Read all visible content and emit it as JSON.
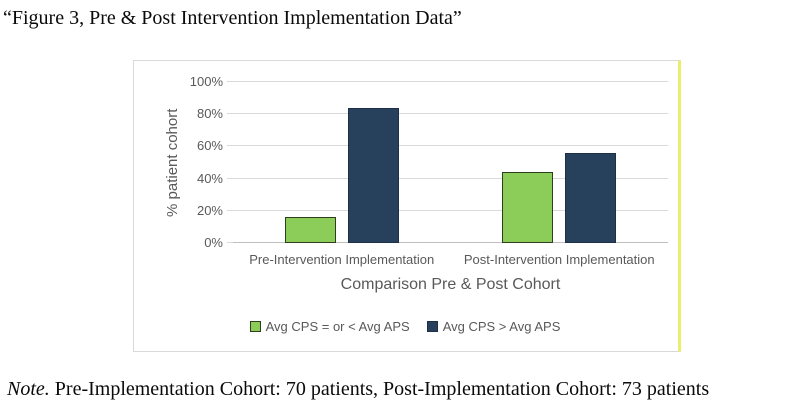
{
  "page": {
    "title": "“Figure 3, Pre & Post Intervention Implementation Data”",
    "note_label": "Note.",
    "note_text": " Pre-Implementation Cohort: 70 patients, Post-Implementation Cohort: 73 patients"
  },
  "chart_data": {
    "type": "bar",
    "categories": [
      "Pre-Intervention Implementation",
      "Post-Intervention Implementation"
    ],
    "series": [
      {
        "name": "Avg CPS = or < Avg APS",
        "color": "#8ccd5a",
        "border_color": "#2f3f1e",
        "values": [
          16,
          44
        ]
      },
      {
        "name": "Avg CPS > Avg APS",
        "color": "#27405c",
        "border_color": "#1d3048",
        "values": [
          84,
          56
        ]
      }
    ],
    "title": "",
    "xlabel": "Comparison Pre & Post Cohort",
    "ylabel": "% patient cohort",
    "ylim": [
      0,
      100
    ],
    "ytick_step": 20,
    "ytick_suffix": "%",
    "grid": true,
    "legend_position": "bottom"
  },
  "colors": {
    "axis_text": "#595959",
    "gridline": "#d9d9d9",
    "axis_line": "#bfbfbf",
    "card_border": "#d9d9d9",
    "card_border_right": "#ebed6f"
  }
}
